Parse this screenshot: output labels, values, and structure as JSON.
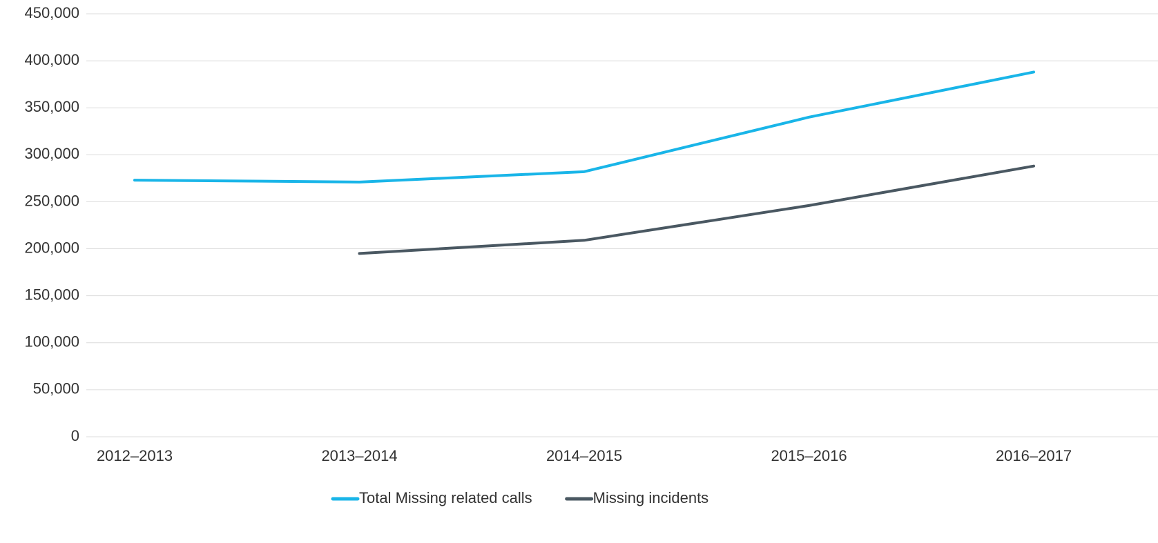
{
  "chart_data": {
    "type": "line",
    "categories": [
      "2012–2013",
      "2013–2014",
      "2014–2015",
      "2015–2016",
      "2016–2017"
    ],
    "series": [
      {
        "name": "Total Missing related calls",
        "color": "#19b5e8",
        "values": [
          273000,
          271000,
          282000,
          340000,
          388000
        ]
      },
      {
        "name": "Missing incidents",
        "color": "#4a5862",
        "values": [
          null,
          195000,
          209000,
          246000,
          288000
        ]
      }
    ],
    "ylim": [
      0,
      450000
    ],
    "yticks": [
      0,
      {
        "value": 50000,
        "label": "50,000"
      },
      {
        "value": 100000,
        "label": "100,000"
      },
      {
        "value": 150000,
        "label": "150,000"
      },
      {
        "value": 200000,
        "label": "200,000"
      },
      {
        "value": 250000,
        "label": "250,000"
      },
      {
        "value": 300000,
        "label": "300,000"
      },
      {
        "value": 350000,
        "label": "350,000"
      },
      {
        "value": 400000,
        "label": "400,000"
      },
      {
        "value": 450000,
        "label": "450,000"
      }
    ],
    "grid": true,
    "legend": "bottom"
  }
}
